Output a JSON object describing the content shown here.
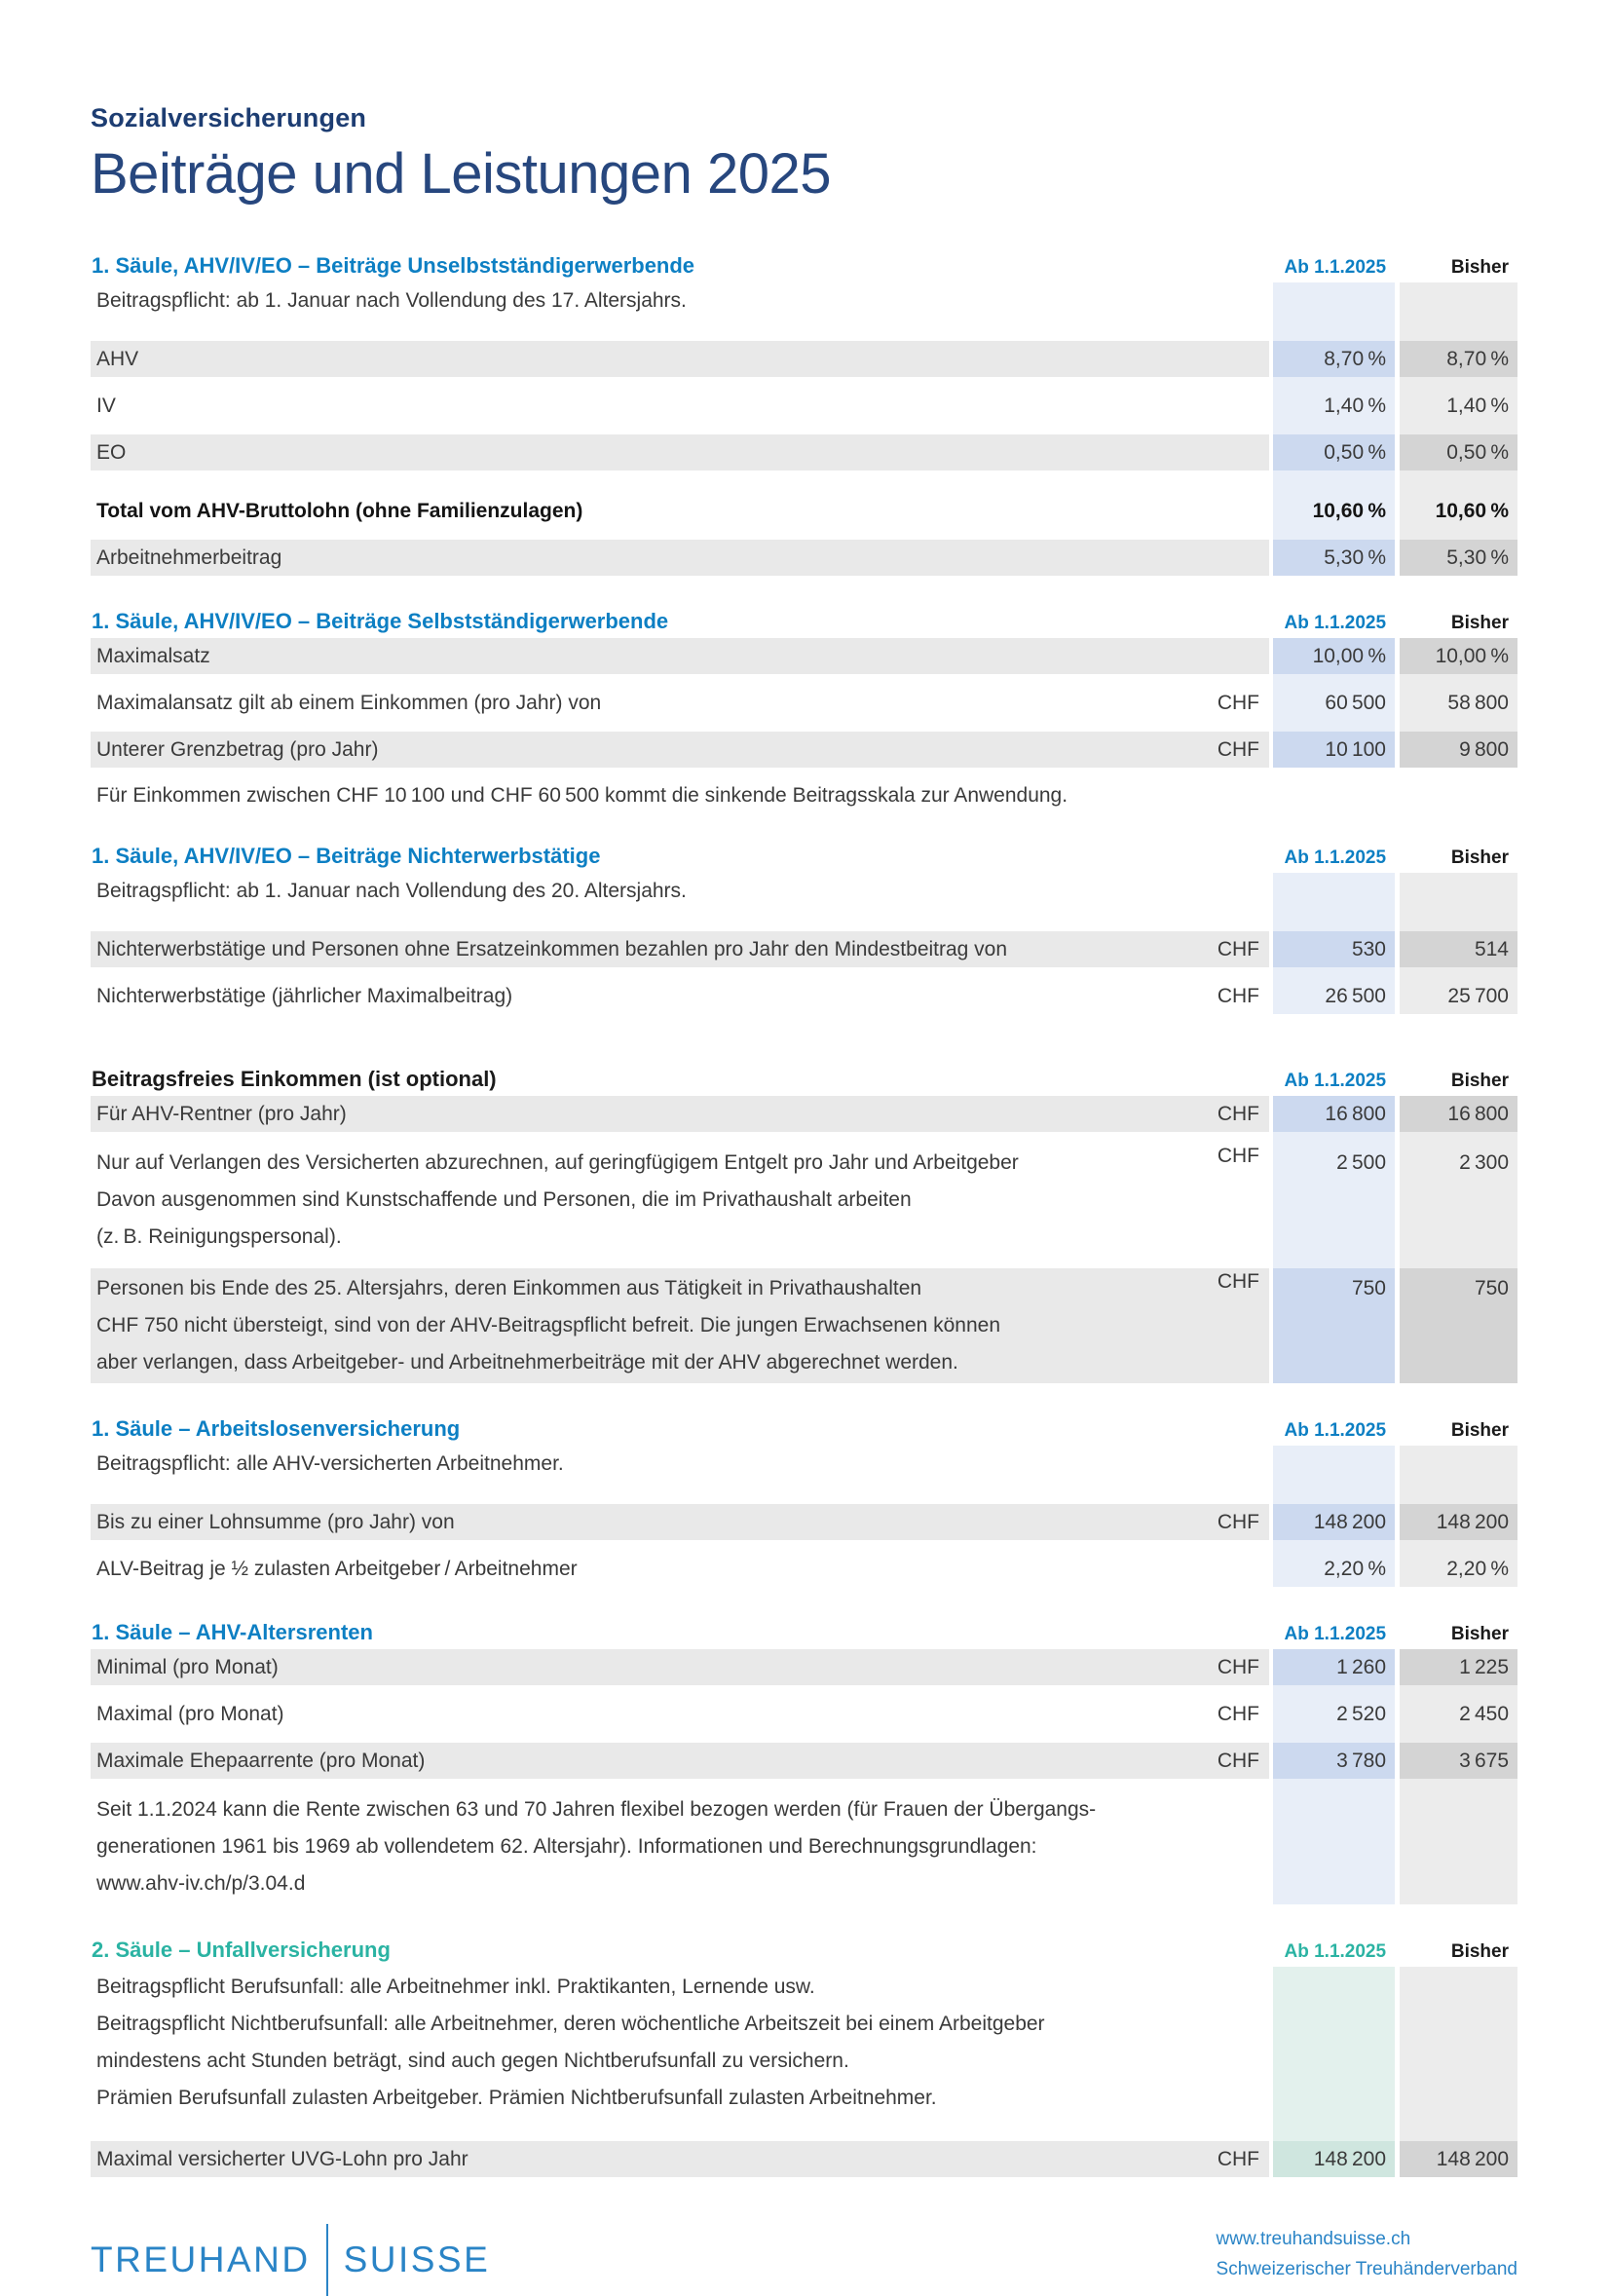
{
  "page": {
    "kicker": "Sozialversicherungen",
    "title": "Beiträge und Leistungen 2025"
  },
  "columns": {
    "current": "Ab 1.1.2025",
    "previous": "Bisher"
  },
  "colors": {
    "navy": "#1d3d72",
    "blue": "#0d7fc3",
    "teal": "#2bb3a3",
    "ink": "#3a3a3a",
    "band": "#e9e9e9",
    "stripe-prev": "#ececec",
    "cell-prev": "#d4d4d4",
    "stripe-blue": "#e8eef8",
    "cell-blue": "#ccd9ef",
    "stripe-teal": "#e3f1ed",
    "cell-teal": "#cfe6df",
    "footer-blue": "#2a84c6"
  },
  "sections": [
    {
      "title": "1. Säule, AHV/IV/EO – Beiträge Unselbstständigerwerbende",
      "title_style": "title-blue",
      "theme": "blue",
      "gap": "first",
      "rows": [
        {
          "type": "note",
          "text": "Beitragspflicht: ab 1. Januar nach Vollendung des 17. Altersjahrs."
        },
        {
          "type": "spacer"
        },
        {
          "type": "data",
          "shade": "gray",
          "label": "AHV",
          "chf": "",
          "current": "8,70 %",
          "previous": "8,70 %"
        },
        {
          "type": "data",
          "shade": "white",
          "label": "IV",
          "chf": "",
          "current": "1,40 %",
          "previous": "1,40 %"
        },
        {
          "type": "data",
          "shade": "gray",
          "label": "EO",
          "chf": "",
          "current": "0,50 %",
          "previous": "0,50 %"
        },
        {
          "type": "spacer"
        },
        {
          "type": "data",
          "shade": "white",
          "bold": true,
          "label": "Total vom AHV-Bruttolohn (ohne Familienzulagen)",
          "chf": "",
          "current": "10,60 %",
          "previous": "10,60 %"
        },
        {
          "type": "data",
          "shade": "gray",
          "label": "Arbeitnehmerbeitrag",
          "chf": "",
          "current": "5,30 %",
          "previous": "5,30 %"
        }
      ]
    },
    {
      "title": "1. Säule, AHV/IV/EO – Beiträge Selbstständigerwerbende",
      "title_style": "title-blue",
      "theme": "blue",
      "rows": [
        {
          "type": "data",
          "shade": "gray",
          "label": "Maximalsatz",
          "chf": "",
          "current": "10,00 %",
          "previous": "10,00 %"
        },
        {
          "type": "data",
          "shade": "white",
          "label": "Maximalansatz gilt ab einem Einkommen (pro Jahr) von",
          "chf": "CHF",
          "current": "60 500",
          "previous": "58 800"
        },
        {
          "type": "data",
          "shade": "gray",
          "label": "Unterer Grenzbetrag (pro Jahr)",
          "chf": "CHF",
          "current": "10 100",
          "previous": "9 800"
        }
      ],
      "note_after": "Für Einkommen zwischen CHF 10 100 und CHF 60 500 kommt die sinkende Beitragsskala zur Anwendung."
    },
    {
      "title": "1. Säule, AHV/IV/EO – Beiträge Nichterwerbstätige",
      "title_style": "title-blue",
      "theme": "blue",
      "rows": [
        {
          "type": "note",
          "text": "Beitragspflicht: ab 1. Januar nach Vollendung des 20. Altersjahrs."
        },
        {
          "type": "spacer"
        },
        {
          "type": "data",
          "shade": "gray",
          "label": "Nichterwerbstätige und Personen ohne Ersatzeinkommen bezahlen pro Jahr den Mindestbeitrag von",
          "chf": "CHF",
          "current": "530",
          "previous": "514"
        },
        {
          "type": "data",
          "shade": "white",
          "label": "Nichterwerbstätige (jährlicher Maximalbeitrag)",
          "chf": "CHF",
          "current": "26 500",
          "previous": "25 700"
        }
      ]
    },
    {
      "title": "Beitragsfreies Einkommen (ist optional)",
      "title_style": "title-black",
      "theme": "blue",
      "gap": "extra",
      "rows": [
        {
          "type": "data",
          "shade": "gray",
          "label": "Für AHV-Rentner (pro Jahr)",
          "chf": "CHF",
          "current": "16 800",
          "previous": "16 800"
        },
        {
          "type": "data",
          "shade": "white",
          "chf": "CHF",
          "current": "2 500",
          "previous": "2 300",
          "lines": [
            "Nur auf Verlangen des Versicherten abzurechnen, auf geringfügigem Entgelt pro Jahr und Arbeitgeber",
            "Davon ausgenommen sind Kunstschaffende und Personen, die im Privathaushalt arbeiten",
            "(z. B. Reinigungspersonal)."
          ]
        },
        {
          "type": "data",
          "shade": "gray",
          "chf": "CHF",
          "current": "750",
          "previous": "750",
          "lines": [
            "Personen bis Ende des 25. Altersjahrs, deren Einkommen aus Tätigkeit in Privathaushalten",
            "CHF 750 nicht übersteigt, sind von der AHV-Beitragspflicht befreit. Die jungen Erwachsenen können",
            "aber verlangen, dass Arbeitgeber- und Arbeitnehmerbeiträge mit der AHV abgerechnet werden."
          ]
        }
      ]
    },
    {
      "title": "1. Säule – Arbeitslosenversicherung",
      "title_style": "title-blue",
      "theme": "blue",
      "rows": [
        {
          "type": "note",
          "text": "Beitragspflicht: alle AHV-versicherten Arbeitnehmer."
        },
        {
          "type": "spacer"
        },
        {
          "type": "data",
          "shade": "gray",
          "label": "Bis zu einer Lohnsumme (pro Jahr) von",
          "chf": "CHF",
          "current": "148 200",
          "previous": "148 200"
        },
        {
          "type": "data",
          "shade": "white",
          "label": "ALV-Beitrag je ½ zulasten Arbeitgeber / Arbeitnehmer",
          "chf": "",
          "current": "2,20 %",
          "previous": "2,20 %"
        }
      ]
    },
    {
      "title": "1. Säule – AHV-Altersrenten",
      "title_style": "title-blue",
      "theme": "blue",
      "rows": [
        {
          "type": "data",
          "shade": "gray",
          "label": "Minimal (pro Monat)",
          "chf": "CHF",
          "current": "1 260",
          "previous": "1 225"
        },
        {
          "type": "data",
          "shade": "white",
          "label": "Maximal (pro Monat)",
          "chf": "CHF",
          "current": "2 520",
          "previous": "2 450"
        },
        {
          "type": "data",
          "shade": "gray",
          "label": "Maximale Ehepaarrente (pro Monat)",
          "chf": "CHF",
          "current": "3 780",
          "previous": "3 675"
        },
        {
          "type": "note",
          "lines": [
            "Seit 1.1.2024 kann die Rente zwischen 63 und 70 Jahren flexibel bezogen werden (für Frauen der Übergangs-",
            "generationen 1961 bis 1969 ab vollendetem 62. Altersjahr). Informationen und Berechnungsgrundlagen:",
            "www.ahv-iv.ch/p/3.04.d"
          ]
        }
      ]
    },
    {
      "title": "2. Säule – Unfallversicherung",
      "title_style": "title-teal",
      "theme": "teal",
      "rows": [
        {
          "type": "note",
          "lines": [
            "Beitragspflicht Berufsunfall: alle Arbeitnehmer inkl. Praktikanten, Lernende usw.",
            "Beitragspflicht Nichtberufsunfall: alle Arbeitnehmer, deren wöchentliche Arbeitszeit bei einem Arbeitgeber",
            "mindestens acht Stunden beträgt, sind auch gegen Nichtberufsunfall zu versichern.",
            "Prämien Berufsunfall zulasten Arbeitgeber. Prämien Nichtberufsunfall zulasten Arbeitnehmer."
          ]
        },
        {
          "type": "spacer"
        },
        {
          "type": "data",
          "shade": "gray",
          "label": "Maximal versicherter UVG-Lohn pro Jahr",
          "chf": "CHF",
          "current": "148 200",
          "previous": "148 200"
        }
      ]
    }
  ],
  "footer": {
    "logo_left": "TREUHAND",
    "logo_right": "SUISSE",
    "website": "www.treuhandsuisse.ch",
    "association": "Schweizerischer Treuhänderverband"
  }
}
